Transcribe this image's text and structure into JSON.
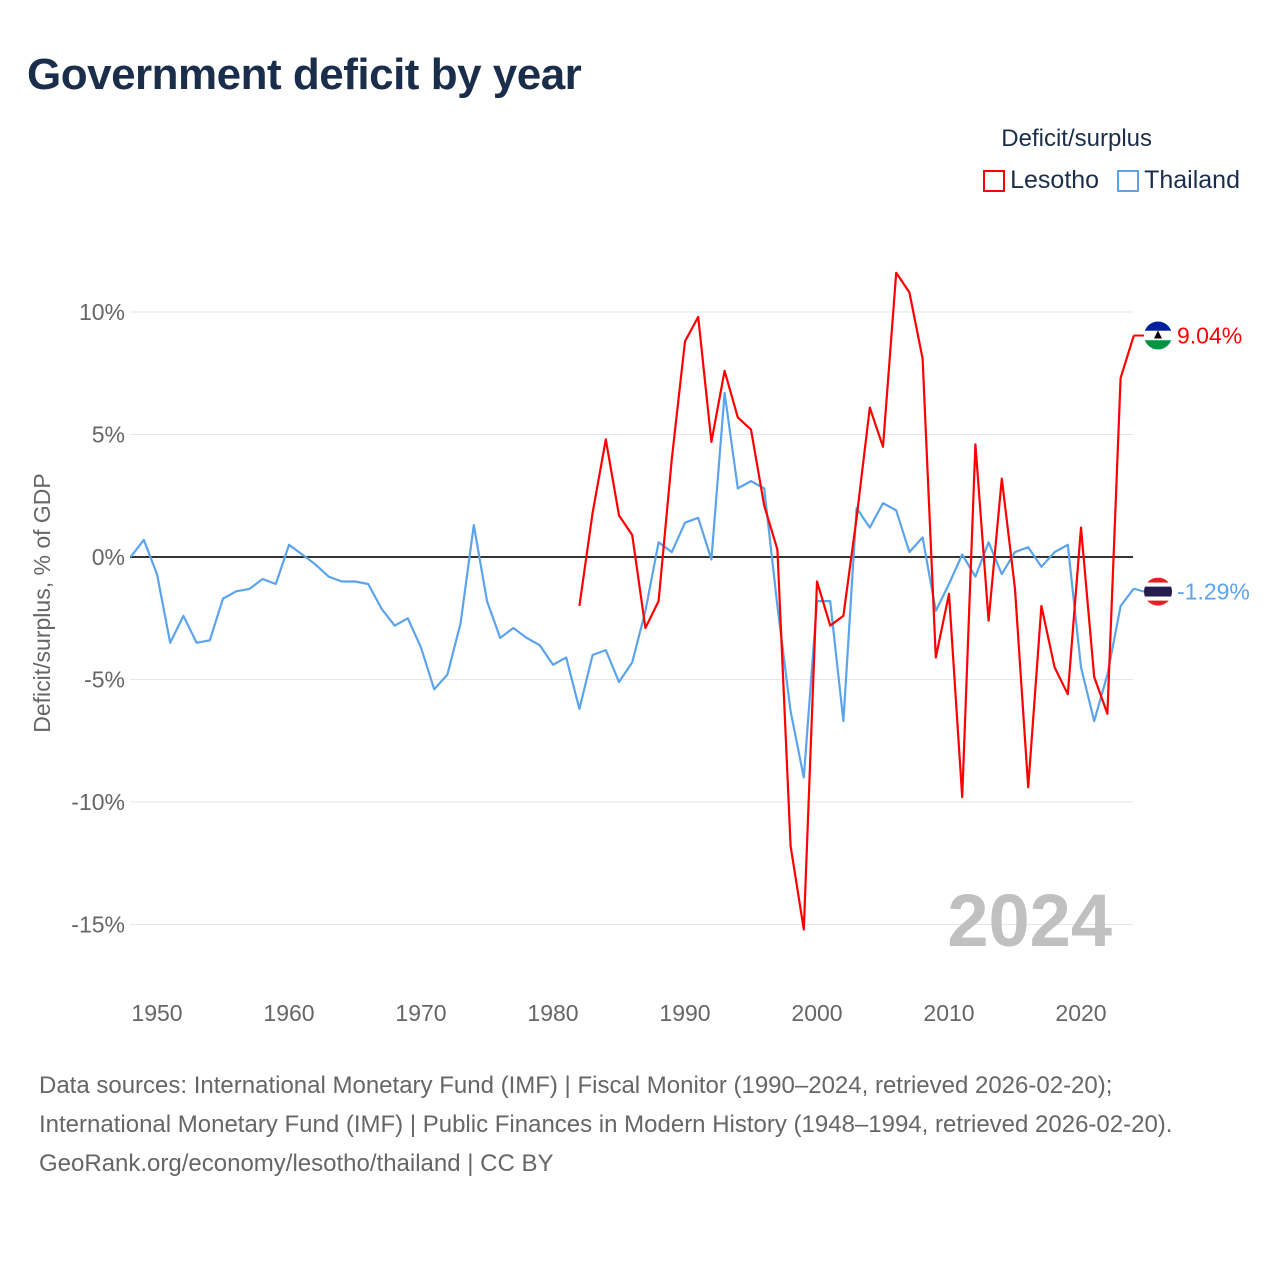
{
  "title": "Government deficit by year",
  "legend": {
    "title": "Deficit/surplus",
    "items": [
      {
        "name": "Lesotho",
        "color": "#ff0000"
      },
      {
        "name": "Thailand",
        "color": "#5ba4ec"
      }
    ]
  },
  "year_watermark": "2024",
  "footer": {
    "sources": "Data sources: International Monetary Fund (IMF) | Fiscal Monitor (1990–2024, retrieved 2026-02-20); International Monetary Fund (IMF) | Public Finances in Modern History (1948–1994, retrieved 2026-02-20).",
    "credit": "GeoRank.org/economy/lesotho/thailand | CC BY"
  },
  "chart_data": {
    "type": "line",
    "title": "Government deficit by year",
    "ylabel": "Deficit/surplus, % of GDP",
    "xlabel": "",
    "xlim": [
      1948,
      2024
    ],
    "ylim": [
      -17,
      12
    ],
    "xticks": [
      1950,
      1960,
      1970,
      1980,
      1990,
      2000,
      2010,
      2020
    ],
    "yticks": [
      {
        "v": 10,
        "label": "10%"
      },
      {
        "v": 5,
        "label": "5%"
      },
      {
        "v": 0,
        "label": "0%"
      },
      {
        "v": -5,
        "label": "-5%"
      },
      {
        "v": -10,
        "label": "-10%"
      },
      {
        "v": -15,
        "label": "-15%"
      }
    ],
    "grid": true,
    "series": [
      {
        "name": "Thailand",
        "color": "#5ba4ec",
        "end_label": "-1.29%",
        "start": 1948,
        "values": [
          0,
          0.7,
          -0.7,
          -3.5,
          -2.4,
          -3.5,
          -3.4,
          -1.7,
          -1.4,
          -1.3,
          -0.9,
          -1.1,
          0.5,
          0.1,
          -0.3,
          -0.8,
          -1.0,
          -1.0,
          -1.1,
          -2.1,
          -2.8,
          -2.5,
          -3.7,
          -5.4,
          -4.8,
          -2.7,
          1.3,
          -1.8,
          -3.3,
          -2.9,
          -3.3,
          -3.6,
          -4.4,
          -4.1,
          -6.2,
          -4.0,
          -3.8,
          -5.1,
          -4.3,
          -2.2,
          0.6,
          0.2,
          1.4,
          1.6,
          -0.1,
          6.7,
          2.8,
          3.1,
          2.8,
          -2.0,
          -6.3,
          -9.0,
          -1.8,
          -1.8,
          -6.7,
          2.0,
          1.2,
          2.2,
          1.9,
          0.2,
          0.8,
          -2.2,
          -1.1,
          0.1,
          -0.8,
          0.6,
          -0.7,
          0.2,
          0.4,
          -0.4,
          0.2,
          0.5,
          -4.5,
          -6.7,
          -4.8,
          -2.0,
          -1.29
        ]
      },
      {
        "name": "Lesotho",
        "color": "#ff0000",
        "end_label": "9.04%",
        "start": 1982,
        "values": [
          -2.0,
          1.8,
          4.8,
          1.7,
          0.9,
          -2.9,
          -1.8,
          4.0,
          8.8,
          9.8,
          4.7,
          7.6,
          5.7,
          5.2,
          2.1,
          0.3,
          -11.8,
          -15.2,
          -1.0,
          -2.8,
          -2.4,
          1.6,
          6.1,
          4.5,
          11.6,
          10.8,
          8.1,
          -4.1,
          -1.5,
          -9.8,
          4.6,
          -2.6,
          3.2,
          -1.3,
          -9.4,
          -2.0,
          -4.5,
          -5.6,
          1.2,
          -4.9,
          -6.4,
          7.3,
          9.04
        ]
      }
    ]
  }
}
